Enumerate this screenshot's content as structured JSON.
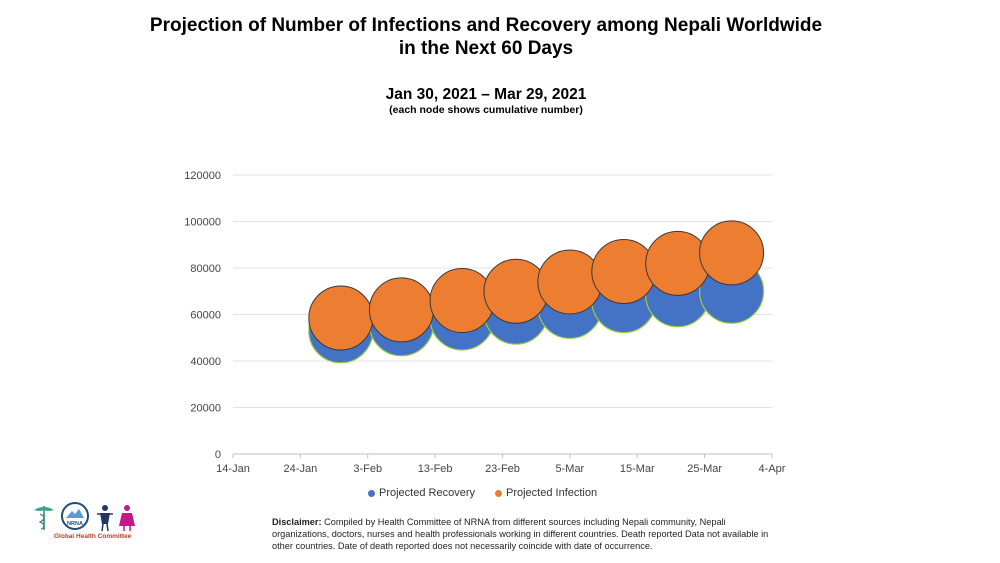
{
  "header": {
    "title_line1": "Projection of Number of Infections and Recovery among Nepali Worldwide",
    "title_line2": "in the Next 60 Days",
    "date_range": "Jan 30, 2021 – Mar 29, 2021",
    "note": "(each node shows cumulative number)"
  },
  "chart_data": {
    "type": "bubble",
    "title": "Projection of Number of Infections and Recovery among Nepali Worldwide in the Next 60 Days",
    "xlabel": "",
    "ylabel": "",
    "x_ticks": [
      "14-Jan",
      "24-Jan",
      "3-Feb",
      "13-Feb",
      "23-Feb",
      "5-Mar",
      "15-Mar",
      "25-Mar",
      "4-Apr"
    ],
    "x_tick_dates": [
      "2021-01-14",
      "2021-01-24",
      "2021-02-03",
      "2021-02-13",
      "2021-02-23",
      "2021-03-05",
      "2021-03-15",
      "2021-03-25",
      "2021-04-04"
    ],
    "y_ticks": [
      0,
      20000,
      40000,
      60000,
      80000,
      100000,
      120000
    ],
    "ylim": [
      0,
      120000
    ],
    "grid": true,
    "legend_position": "bottom",
    "series": [
      {
        "name": "Projected Recovery",
        "color": "#4472c4",
        "points": [
          {
            "x": "2021-01-30",
            "y": 53000
          },
          {
            "x": "2021-02-08",
            "y": 56000
          },
          {
            "x": "2021-02-17",
            "y": 58500
          },
          {
            "x": "2021-02-25",
            "y": 61000
          },
          {
            "x": "2021-03-05",
            "y": 63500
          },
          {
            "x": "2021-03-13",
            "y": 66000
          },
          {
            "x": "2021-03-21",
            "y": 68500
          },
          {
            "x": "2021-03-29",
            "y": 70000
          }
        ]
      },
      {
        "name": "Projected Infection",
        "color": "#ed7d31",
        "points": [
          {
            "x": "2021-01-30",
            "y": 58500
          },
          {
            "x": "2021-02-08",
            "y": 62000
          },
          {
            "x": "2021-02-17",
            "y": 66000
          },
          {
            "x": "2021-02-25",
            "y": 70000
          },
          {
            "x": "2021-03-05",
            "y": 74000
          },
          {
            "x": "2021-03-13",
            "y": 78500
          },
          {
            "x": "2021-03-21",
            "y": 82000
          },
          {
            "x": "2021-03-29",
            "y": 86500
          }
        ]
      }
    ]
  },
  "legend": {
    "recovery_label": "Projected Recovery",
    "infection_label": "Projected Infection",
    "recovery_color": "#4472c4",
    "infection_color": "#ed7d31"
  },
  "footer": {
    "logo_text": "NRNA",
    "logo_caption": "Global Health Committee",
    "disclaimer_label": "Disclaimer:",
    "disclaimer_text": "Compiled by Health Committee of NRNA from different sources including Nepali community, Nepali organizations, doctors, nurses and health professionals working in different countries. Death reported Data not available in other countries. Date of death reported does not necessarily coincide with date of occurrence."
  }
}
